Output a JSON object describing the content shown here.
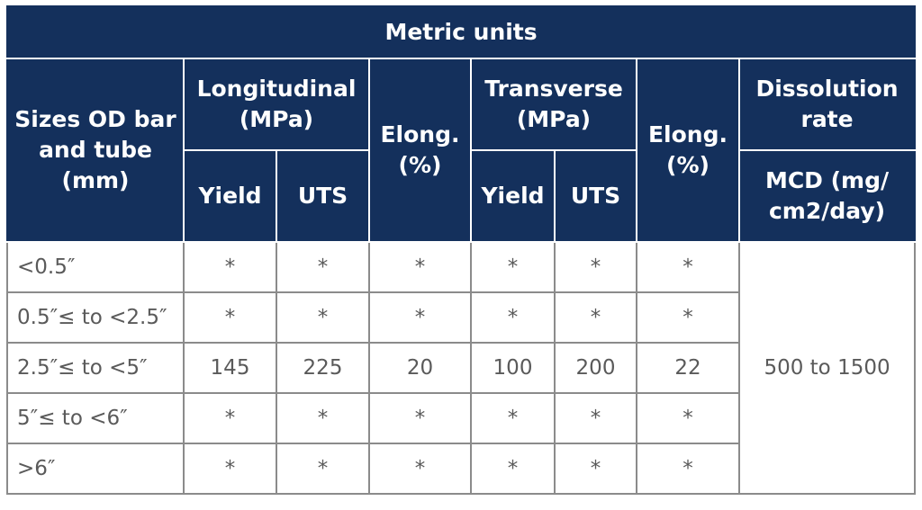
{
  "title": "Metric units",
  "header": {
    "sizes": "Sizes OD bar and tube (mm)",
    "longitudinal": "Longitudinal (MPa)",
    "elong_1": "Elong. (%)",
    "transverse": "Transverse (MPa)",
    "elong_2": "Elong. (%)",
    "dissolution": "Dissolution rate",
    "yield_1": "Yield",
    "uts_1": "UTS",
    "yield_2": "Yield",
    "uts_2": "UTS",
    "mcd": "MCD (mg/ cm2/day)"
  },
  "rows": [
    {
      "size": "<0.5″",
      "l_yield": "*",
      "l_uts": "*",
      "elong_l": "*",
      "t_yield": "*",
      "t_uts": "*",
      "elong_t": "*"
    },
    {
      "size": "0.5″≤ to <2.5″",
      "l_yield": "*",
      "l_uts": "*",
      "elong_l": "*",
      "t_yield": "*",
      "t_uts": "*",
      "elong_t": "*"
    },
    {
      "size": "2.5″≤ to <5″",
      "l_yield": "145",
      "l_uts": "225",
      "elong_l": "20",
      "t_yield": "100",
      "t_uts": "200",
      "elong_t": "22"
    },
    {
      "size": "5″≤ to <6″",
      "l_yield": "*",
      "l_uts": "*",
      "elong_l": "*",
      "t_yield": "*",
      "t_uts": "*",
      "elong_t": "*"
    },
    {
      "size": ">6″",
      "l_yield": "*",
      "l_uts": "*",
      "elong_l": "*",
      "t_yield": "*",
      "t_uts": "*",
      "elong_t": "*"
    }
  ],
  "dissolution_value": "500 to 1500",
  "colors": {
    "header_bg": "#14305c",
    "header_text": "#ffffff",
    "cell_text": "#5a5a5a",
    "grid": "#8b8b8b"
  }
}
